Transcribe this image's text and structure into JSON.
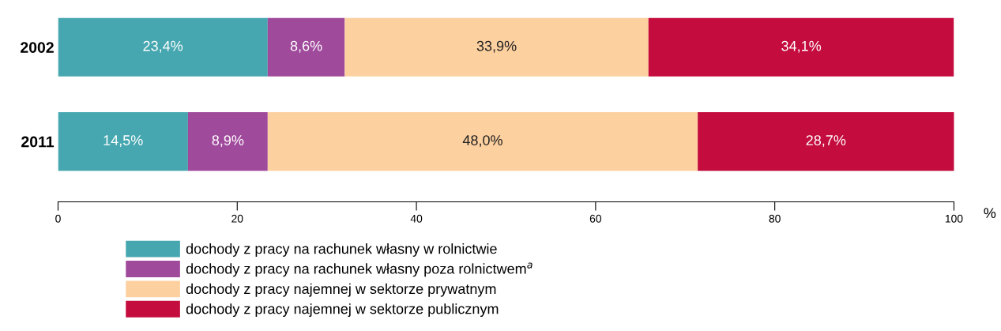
{
  "chart_data": {
    "type": "bar",
    "orientation": "horizontal",
    "stacked": true,
    "categories": [
      "2002",
      "2011"
    ],
    "series": [
      {
        "name": "dochody z pracy na rachunek własny w rolnictwie",
        "color": "#46a7b0",
        "values": [
          23.4,
          14.5
        ],
        "value_labels": [
          "23,4%",
          "14,5%"
        ]
      },
      {
        "name": "dochody z pracy na rachunek własny poza rolnictwem$^{a}$",
        "color": "#a04a9c",
        "values": [
          8.6,
          8.9
        ],
        "value_labels": [
          "8,6%",
          "8,9%"
        ]
      },
      {
        "name": "dochody z pracy najemnej w sektorze prywatnym",
        "color": "#fdd09f",
        "values": [
          33.9,
          48.0
        ],
        "value_labels": [
          "33,9%",
          "48,0%"
        ]
      },
      {
        "name": "dochody z pracy najemnej w sektorze publicznym",
        "color": "#c40c3e",
        "values": [
          34.1,
          28.7
        ],
        "value_labels": [
          "34,1%",
          "28,7%"
        ]
      }
    ],
    "xlabel": "%",
    "xlim": [
      0,
      100
    ],
    "xticks": [
      0,
      20,
      40,
      60,
      80,
      100
    ],
    "legend": "bottom",
    "grid": false
  }
}
